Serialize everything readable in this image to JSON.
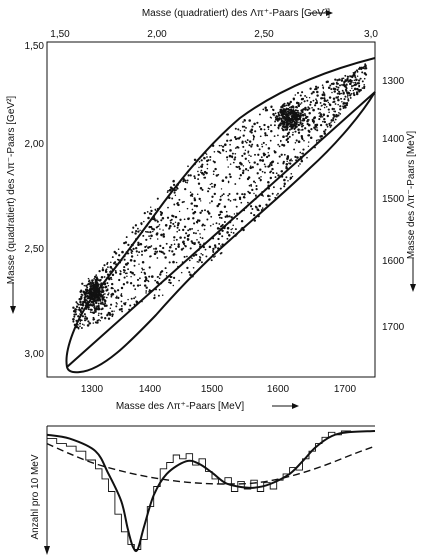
{
  "chart_data": [
    {
      "type": "scatter",
      "top_axis": {
        "label_text": "Masse (quadratiert) des Λπ⁺-Paars [GeV²]",
        "range": [
          1.5,
          3.0
        ],
        "ticks": [
          "1,50",
          "2,00",
          "2,50",
          "3,0"
        ],
        "tick_values": [
          1.5,
          2.0,
          2.5,
          3.0
        ]
      },
      "bottom_axis": {
        "label_text": "Masse des Λπ⁺-Paars [MeV]",
        "range": [
          1225,
          1732
        ],
        "ticks": [
          "1300",
          "1400",
          "1500",
          "1600",
          "1700"
        ],
        "tick_values": [
          1300,
          1400,
          1500,
          1600,
          1700
        ]
      },
      "left_axis": {
        "label_text": "Masse (quadratiert) des Λπ⁻-Paars [GeV²]",
        "range": [
          1.5,
          3.1
        ],
        "ticks": [
          "1,50",
          "2,00",
          "2,50",
          "3,00"
        ],
        "tick_values": [
          1.5,
          2.0,
          2.5,
          3.0
        ]
      },
      "right_axis": {
        "label_text": "Masse des Λπ⁻-Paars [MeV]",
        "ticks": [
          "1300",
          "1400",
          "1500",
          "1600",
          "1700"
        ],
        "tick_values": [
          1300,
          1400,
          1500,
          1600,
          1700
        ]
      },
      "boundary": "Dalitz kinematic boundary (tilted ellipse-like contour)",
      "point_cloud": {
        "x_range_gev2": [
          1.6,
          2.98
        ],
        "y_range_gev2": [
          1.55,
          3.05
        ],
        "dense_regions_gev2": [
          [
            2.6,
            1.85
          ],
          [
            1.72,
            2.7
          ]
        ]
      },
      "grid": false,
      "legend": "none"
    },
    {
      "type": "line",
      "ylabel": "Anzahl pro 10 MeV",
      "x_range_mev": [
        1225,
        1732
      ],
      "series": [
        {
          "style": "solid",
          "points": [
            [
              1225,
              0.93
            ],
            [
              1260,
              0.9
            ],
            [
              1300,
              0.8
            ],
            [
              1320,
              0.62
            ],
            [
              1340,
              0.4
            ],
            [
              1350,
              0.18
            ],
            [
              1358,
              0.04
            ],
            [
              1365,
              0.02
            ],
            [
              1375,
              0.2
            ],
            [
              1390,
              0.45
            ],
            [
              1410,
              0.62
            ],
            [
              1440,
              0.72
            ],
            [
              1460,
              0.7
            ],
            [
              1480,
              0.63
            ],
            [
              1500,
              0.55
            ],
            [
              1520,
              0.52
            ],
            [
              1545,
              0.51
            ],
            [
              1570,
              0.54
            ],
            [
              1600,
              0.62
            ],
            [
              1620,
              0.72
            ],
            [
              1640,
              0.83
            ],
            [
              1665,
              0.92
            ],
            [
              1690,
              0.95
            ],
            [
              1732,
              0.96
            ]
          ]
        },
        {
          "style": "dashed",
          "points": [
            [
              1225,
              0.86
            ],
            [
              1260,
              0.78
            ],
            [
              1300,
              0.7
            ],
            [
              1350,
              0.63
            ],
            [
              1400,
              0.58
            ],
            [
              1450,
              0.55
            ],
            [
              1500,
              0.54
            ],
            [
              1550,
              0.55
            ],
            [
              1600,
              0.6
            ],
            [
              1650,
              0.68
            ],
            [
              1700,
              0.78
            ],
            [
              1732,
              0.84
            ]
          ]
        },
        {
          "style": "step",
          "points": [
            [
              1225,
              0.9
            ],
            [
              1240,
              0.86
            ],
            [
              1255,
              0.84
            ],
            [
              1270,
              0.8
            ],
            [
              1285,
              0.73
            ],
            [
              1300,
              0.66
            ],
            [
              1310,
              0.58
            ],
            [
              1320,
              0.48
            ],
            [
              1330,
              0.3
            ],
            [
              1340,
              0.16
            ],
            [
              1350,
              0.06
            ],
            [
              1360,
              0.02
            ],
            [
              1370,
              0.1
            ],
            [
              1380,
              0.36
            ],
            [
              1390,
              0.52
            ],
            [
              1400,
              0.66
            ],
            [
              1410,
              0.71
            ],
            [
              1420,
              0.77
            ],
            [
              1430,
              0.74
            ],
            [
              1440,
              0.78
            ],
            [
              1450,
              0.69
            ],
            [
              1460,
              0.74
            ],
            [
              1470,
              0.64
            ],
            [
              1480,
              0.58
            ],
            [
              1490,
              0.54
            ],
            [
              1500,
              0.59
            ],
            [
              1510,
              0.48
            ],
            [
              1520,
              0.56
            ],
            [
              1530,
              0.5
            ],
            [
              1540,
              0.57
            ],
            [
              1550,
              0.48
            ],
            [
              1560,
              0.55
            ],
            [
              1570,
              0.5
            ],
            [
              1580,
              0.57
            ],
            [
              1590,
              0.62
            ],
            [
              1600,
              0.67
            ],
            [
              1610,
              0.65
            ],
            [
              1620,
              0.74
            ],
            [
              1630,
              0.8
            ],
            [
              1640,
              0.86
            ],
            [
              1650,
              0.91
            ],
            [
              1660,
              0.95
            ],
            [
              1670,
              0.93
            ],
            [
              1680,
              0.96
            ]
          ]
        }
      ],
      "grid": false,
      "legend": "none"
    }
  ]
}
